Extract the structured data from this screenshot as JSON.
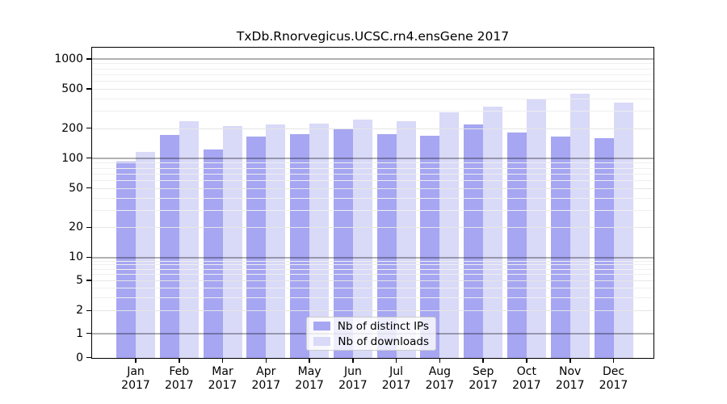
{
  "chart_data": {
    "type": "bar",
    "title": "TxDb.Rnorvegicus.UCSC.rn4.ensGene 2017",
    "categories": [
      "Jan",
      "Feb",
      "Mar",
      "Apr",
      "May",
      "Jun",
      "Jul",
      "Aug",
      "Sep",
      "Oct",
      "Nov",
      "Dec"
    ],
    "year_label": "2017",
    "series": [
      {
        "name": "Nb of distinct IPs",
        "color": "#a6a6f2",
        "values": [
          93,
          170,
          122,
          164,
          175,
          196,
          176,
          167,
          218,
          180,
          165,
          160
        ]
      },
      {
        "name": "Nb of downloads",
        "color": "#d9d9f8",
        "values": [
          116,
          234,
          211,
          219,
          222,
          246,
          236,
          289,
          331,
          394,
          441,
          365
        ]
      }
    ],
    "y_ticks": [
      1000,
      500,
      200,
      100,
      50,
      20,
      10,
      5,
      2,
      1,
      0
    ],
    "ylim": [
      0,
      1000
    ],
    "y_scale": "log-like (symlog, 0 at baseline)",
    "grid": true,
    "legend_position": "bottom-center"
  },
  "legend": {
    "items": [
      {
        "label": "Nb of distinct IPs",
        "color": "#a6a6f2"
      },
      {
        "label": "Nb of downloads",
        "color": "#d9d9f8"
      }
    ]
  },
  "colors": {
    "bar_distinct_ips": "#a6a6f2",
    "bar_downloads": "#d9d9f8",
    "decade_gridline_rgba": "rgba(0,0,0,0.30)",
    "labeled_gridline": "#e6e6e6",
    "minor_gridline": "#efefef",
    "axis": "#000000",
    "legend_border": "#cccccc"
  }
}
